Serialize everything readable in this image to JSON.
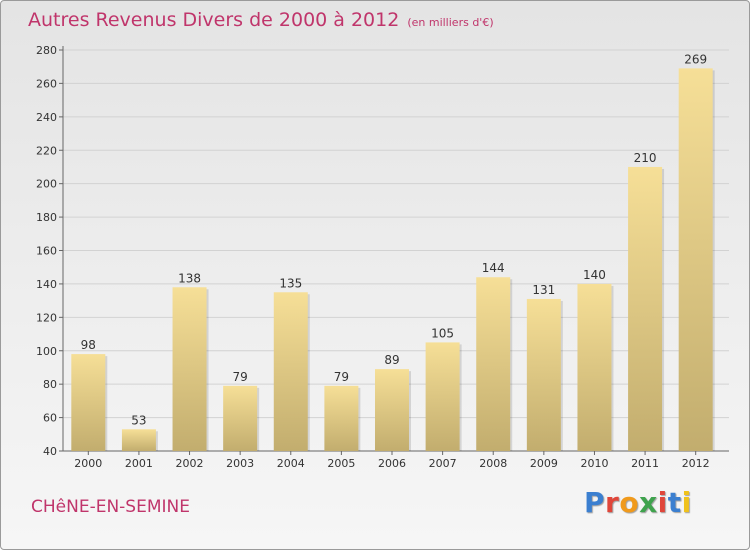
{
  "header": {
    "title": "Autres Revenus Divers de 2000 à 2012",
    "unit": "(en milliers d'€)"
  },
  "footer": {
    "commune": "CHêNE-EN-SEMINE",
    "logo": "Proxiti"
  },
  "colors": {
    "title": "#c0356b",
    "bar_top": "#f6df97",
    "bar_bottom": "#c2ad6e",
    "logo_letters": [
      "#3b7fd0",
      "#e0463a",
      "#f09a1c",
      "#3fa34d",
      "#e0463a",
      "#3b7fd0",
      "#f0c21c"
    ]
  },
  "chart_data": {
    "type": "bar",
    "title": "Autres Revenus Divers de 2000 à 2012",
    "xlabel": "",
    "ylabel": "",
    "categories": [
      "2000",
      "2001",
      "2002",
      "2003",
      "2004",
      "2005",
      "2006",
      "2007",
      "2008",
      "2009",
      "2010",
      "2011",
      "2012"
    ],
    "values": [
      98,
      53,
      138,
      79,
      135,
      79,
      89,
      105,
      144,
      131,
      140,
      210,
      269
    ],
    "ylim": [
      40,
      280
    ],
    "yticks": [
      40,
      60,
      80,
      100,
      120,
      140,
      160,
      180,
      200,
      220,
      240,
      260,
      280
    ],
    "grid": true,
    "data_labels": true
  }
}
